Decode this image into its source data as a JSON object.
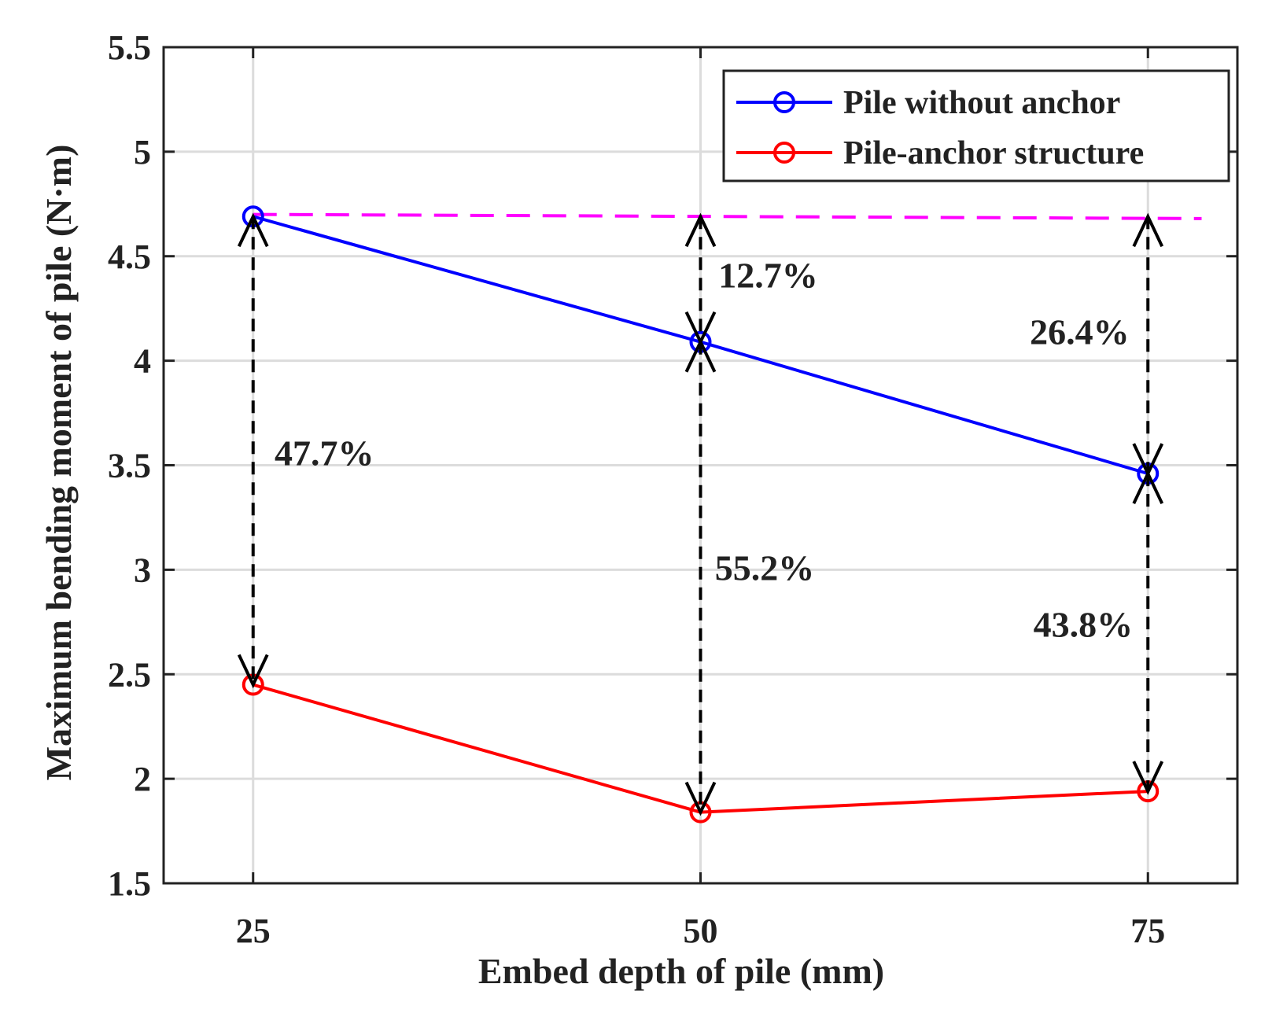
{
  "chart_data": {
    "type": "line",
    "title": "",
    "xlabel": "Embed depth of pile (mm)",
    "ylabel": "Maximum bending moment of pile (N·m)",
    "xlim": [
      20,
      80
    ],
    "ylim": [
      1.5,
      5.5
    ],
    "x": [
      25,
      50,
      75
    ],
    "x_tick_labels": [
      "25",
      "50",
      "75"
    ],
    "y_ticks": [
      1.5,
      2,
      2.5,
      3,
      3.5,
      4,
      4.5,
      5,
      5.5
    ],
    "y_tick_labels": [
      "1.5",
      "2",
      "2.5",
      "3",
      "3.5",
      "4",
      "4.5",
      "5",
      "5.5"
    ],
    "grid": true,
    "legend_position": "top-right",
    "series": [
      {
        "name": "Pile without anchor",
        "color": "#0000ff",
        "marker": "circle",
        "values": [
          4.69,
          4.09,
          3.46
        ]
      },
      {
        "name": "Pile-anchor structure",
        "color": "#ff0000",
        "marker": "circle",
        "values": [
          2.45,
          1.84,
          1.94
        ]
      }
    ],
    "reference_line": {
      "color": "#ff00ff",
      "style": "dashed",
      "x": [
        25,
        78
      ],
      "values": [
        4.7,
        4.68
      ]
    },
    "arrows": [
      {
        "x": 25,
        "from": 4.69,
        "to": 2.45
      },
      {
        "x": 50,
        "from": 4.69,
        "to": 4.09
      },
      {
        "x": 50,
        "from": 4.09,
        "to": 1.84
      },
      {
        "x": 75,
        "from": 4.69,
        "to": 3.46
      },
      {
        "x": 75,
        "from": 3.46,
        "to": 1.94
      }
    ],
    "annotations": [
      {
        "text": "47.7%",
        "x": 26.2,
        "y": 3.5
      },
      {
        "text": "12.7%",
        "x": 51.0,
        "y": 4.35
      },
      {
        "text": "55.2%",
        "x": 50.8,
        "y": 2.95
      },
      {
        "text": "26.4%",
        "x": 68.4,
        "y": 4.08
      },
      {
        "text": "43.8%",
        "x": 68.6,
        "y": 2.68
      }
    ]
  }
}
